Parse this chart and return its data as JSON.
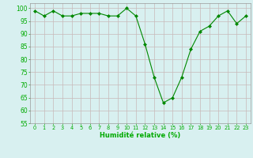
{
  "x": [
    0,
    1,
    2,
    3,
    4,
    5,
    6,
    7,
    8,
    9,
    10,
    11,
    12,
    13,
    14,
    15,
    16,
    17,
    18,
    19,
    20,
    21,
    22,
    23
  ],
  "y": [
    99,
    97,
    99,
    97,
    97,
    98,
    98,
    98,
    97,
    97,
    100,
    97,
    86,
    73,
    63,
    65,
    73,
    84,
    91,
    93,
    97,
    99,
    94,
    97
  ],
  "line_color": "#008800",
  "marker": "D",
  "marker_size": 2.0,
  "bg_color": "#d8f0f0",
  "grid_color": "#c8b8b8",
  "xlabel": "Humidité relative (%)",
  "xlabel_color": "#00aa00",
  "tick_color": "#00aa00",
  "ylim": [
    55,
    102
  ],
  "yticks": [
    55,
    60,
    65,
    70,
    75,
    80,
    85,
    90,
    95,
    100
  ],
  "xlim": [
    -0.5,
    23.5
  ],
  "figsize": [
    3.2,
    2.0
  ],
  "dpi": 100
}
